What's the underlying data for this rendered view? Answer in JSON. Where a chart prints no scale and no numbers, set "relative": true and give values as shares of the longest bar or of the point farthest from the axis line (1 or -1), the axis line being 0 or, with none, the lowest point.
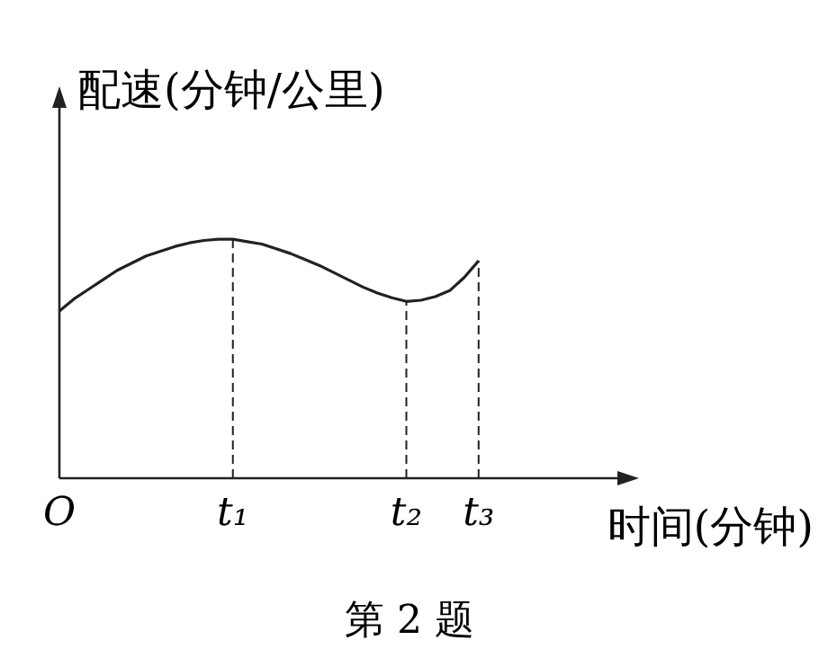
{
  "chart_data": {
    "type": "line",
    "relative": true,
    "xlabel": "时间(分钟)",
    "ylabel": "配速(分钟/公里)",
    "annotations": [
      "第 2 题"
    ],
    "categories": [
      "O",
      null,
      null,
      null,
      null,
      null,
      null,
      null,
      null,
      null,
      null,
      null,
      "t₁",
      null,
      null,
      null,
      null,
      null,
      null,
      null,
      null,
      null,
      null,
      null,
      "t₂",
      null,
      null,
      null,
      null,
      "t₃"
    ],
    "series": [
      {
        "color": "#222222",
        "values": [
          0.7,
          0.75,
          0.79,
          0.83,
          0.87,
          0.9,
          0.93,
          0.95,
          0.97,
          0.985,
          0.995,
          1,
          1,
          0.99,
          0.98,
          0.96,
          0.94,
          0.915,
          0.89,
          0.86,
          0.83,
          0.8,
          0.775,
          0.755,
          0.74,
          0.745,
          0.76,
          0.785,
          0.84,
          0.91
        ]
      }
    ],
    "ref_lines": [
      {
        "axis": "x",
        "value": "t₁",
        "line_style": "dashed"
      },
      {
        "axis": "x",
        "value": "t₂",
        "line_style": "dashed"
      },
      {
        "axis": "x",
        "value": "t₃",
        "line_style": "dashed"
      }
    ],
    "grid": false
  }
}
